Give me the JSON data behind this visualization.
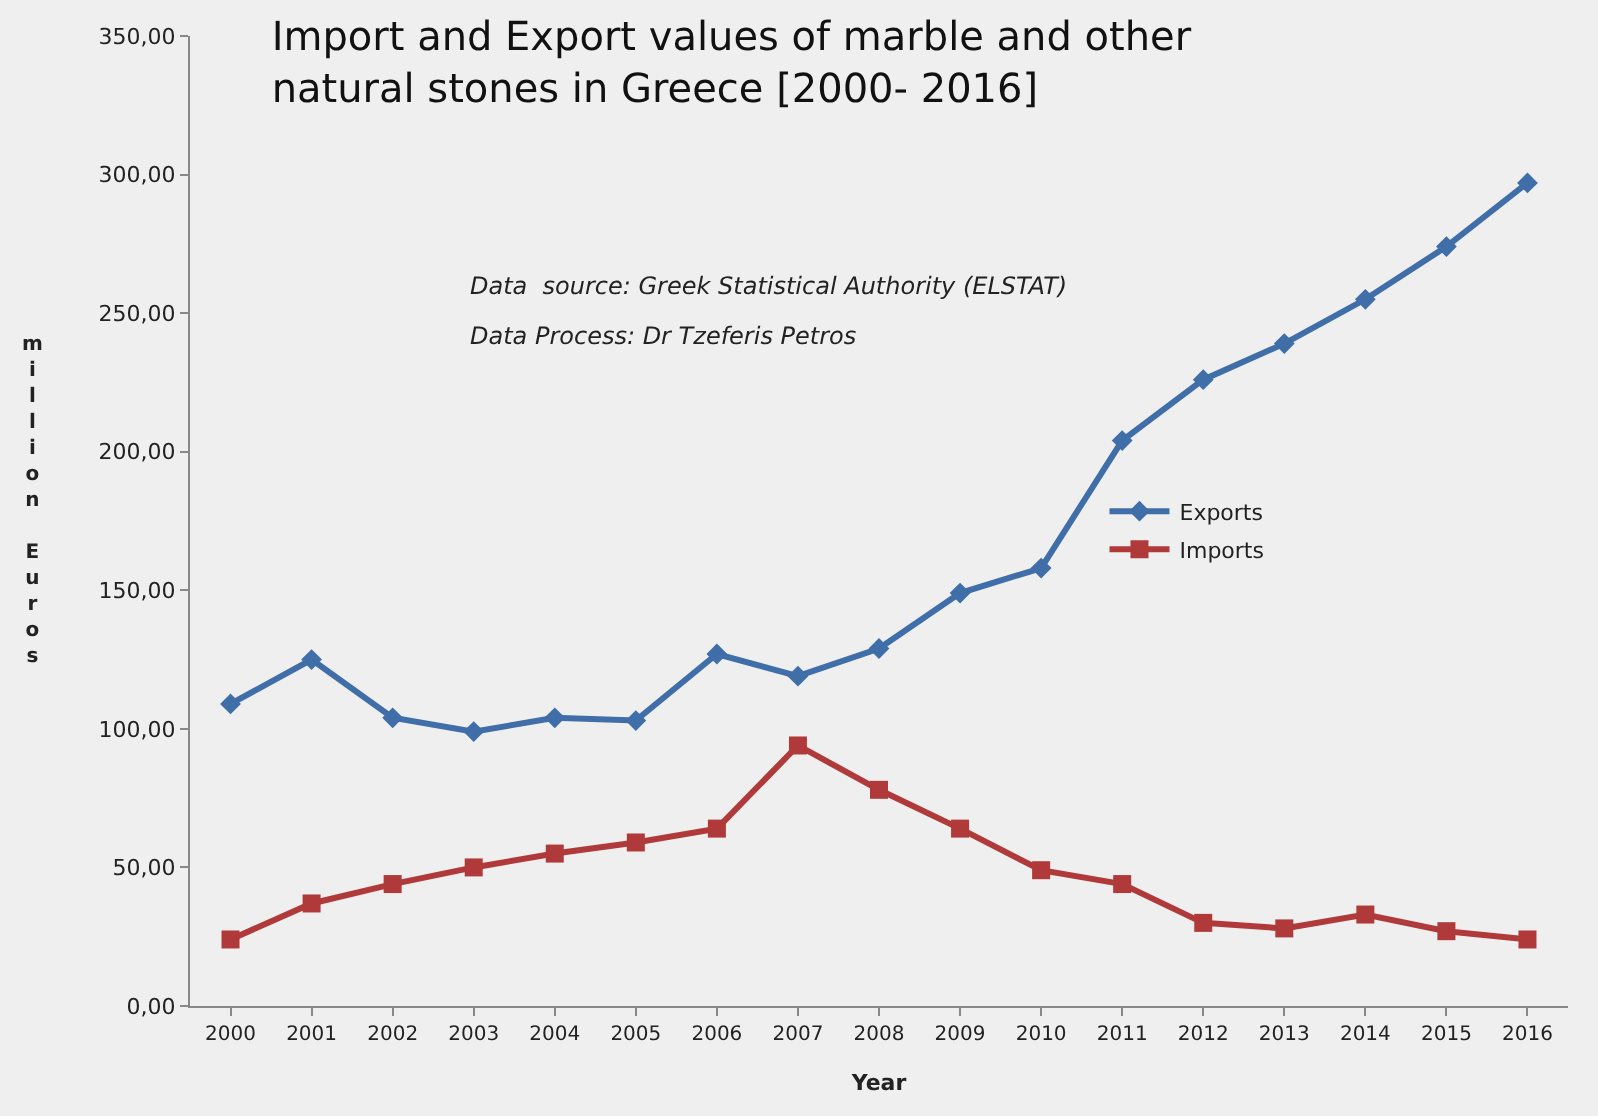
{
  "chart_data": {
    "type": "line",
    "title": "Import and Export values of marble and other natural stones in Greece [2000- 2016]",
    "xlabel": "Year",
    "ylabel": "million Euros",
    "categories": [
      "2000",
      "2001",
      "2002",
      "2003",
      "2004",
      "2005",
      "2006",
      "2007",
      "2008",
      "2009",
      "2010",
      "2011",
      "2012",
      "2013",
      "2014",
      "2015",
      "2016"
    ],
    "series": [
      {
        "name": "Exports",
        "color": "#3f6ea8",
        "marker": "diamond",
        "values": [
          109,
          125,
          104,
          99,
          104,
          103,
          127,
          119,
          129,
          149,
          158,
          204,
          226,
          239,
          255,
          274,
          297
        ]
      },
      {
        "name": "Imports",
        "color": "#b03a3a",
        "marker": "square",
        "values": [
          24,
          37,
          44,
          50,
          55,
          59,
          64,
          94,
          78,
          64,
          49,
          44,
          30,
          28,
          33,
          27,
          24
        ]
      }
    ],
    "ylim": [
      0,
      350
    ],
    "yticks": [
      {
        "value": 0,
        "label": "0,00"
      },
      {
        "value": 50,
        "label": "50,00"
      },
      {
        "value": 100,
        "label": "100,00"
      },
      {
        "value": 150,
        "label": "150,00"
      },
      {
        "value": 200,
        "label": "200,00"
      },
      {
        "value": 250,
        "label": "250,00"
      },
      {
        "value": 300,
        "label": "300,00"
      },
      {
        "value": 350,
        "label": "350,00"
      }
    ],
    "annotations": [
      "Data  source: Greek Statistical Authority (ELSTAT)",
      "Data Process: Dr Tzeferis Petros"
    ],
    "grid": false,
    "legend": "right",
    "line_style": "solid"
  }
}
